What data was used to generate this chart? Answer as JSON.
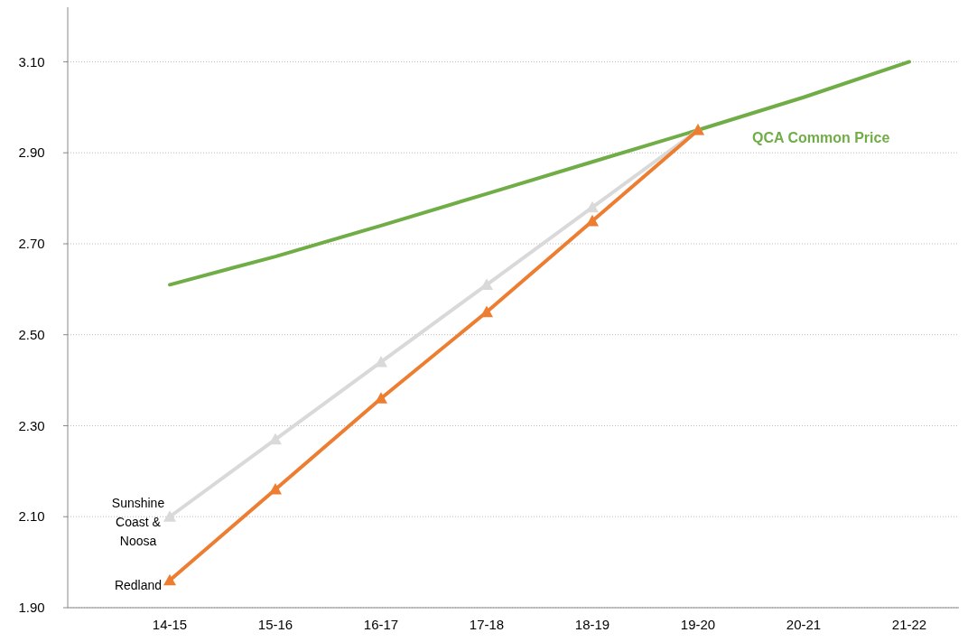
{
  "chart_data": {
    "type": "line",
    "categories": [
      "14-15",
      "15-16",
      "16-17",
      "17-18",
      "18-19",
      "19-20",
      "20-21",
      "21-22"
    ],
    "series": [
      {
        "name": "QCA Common Price",
        "color": "#70ad47",
        "marker": "none",
        "values": [
          2.61,
          2.672,
          2.74,
          2.81,
          2.88,
          2.95,
          3.022,
          3.1
        ]
      },
      {
        "name": "Sunshine Coast & Noosa",
        "color": "#d9d9d9",
        "marker": "triangle",
        "values": [
          2.1,
          2.27,
          2.44,
          2.61,
          2.78,
          2.95,
          null,
          null
        ]
      },
      {
        "name": "Redland",
        "color": "#ed7d31",
        "marker": "triangle",
        "values": [
          1.96,
          2.16,
          2.36,
          2.55,
          2.75,
          2.95,
          null,
          null
        ]
      }
    ],
    "ylim": [
      1.9,
      3.22
    ],
    "yticks": [
      {
        "value": 1.9,
        "label": "1.90"
      },
      {
        "value": 2.1,
        "label": "2.10"
      },
      {
        "value": 2.3,
        "label": "2.30"
      },
      {
        "value": 2.5,
        "label": "2.50"
      },
      {
        "value": 2.7,
        "label": "2.70"
      },
      {
        "value": 2.9,
        "label": "2.90"
      },
      {
        "value": 3.1,
        "label": "3.10"
      }
    ],
    "grid": "y",
    "line_style": "solid"
  }
}
